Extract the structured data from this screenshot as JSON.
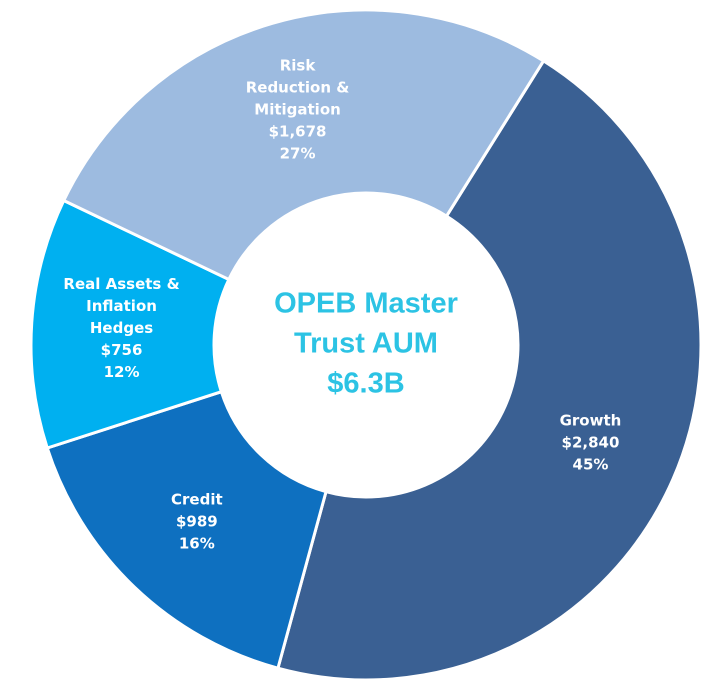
{
  "chart_data": {
    "type": "donut",
    "center_label": [
      "OPEB Master",
      "Trust AUM",
      "$6.3B"
    ],
    "categories": [
      [
        "Growth"
      ],
      [
        "Credit"
      ],
      [
        "Real Assets &",
        "Inflation",
        "Hedges"
      ],
      [
        "Risk",
        "Reduction &",
        "Mitigation"
      ]
    ],
    "values": [
      2840,
      989,
      756,
      1678
    ],
    "value_labels": [
      "$2,840",
      "$989",
      "$756",
      "$1,678"
    ],
    "percent_labels": [
      "45%",
      "16%",
      "12%",
      "27%"
    ],
    "colors": [
      "#3a6093",
      "#0e70c0",
      "#00b0f0",
      "#9dbbe0"
    ]
  }
}
